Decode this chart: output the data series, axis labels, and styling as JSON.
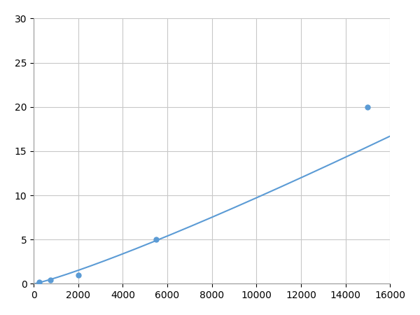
{
  "x": [
    250,
    750,
    2000,
    5500,
    15000
  ],
  "y": [
    0.2,
    0.4,
    1.0,
    5.0,
    20.0
  ],
  "line_color": "#5b9bd5",
  "marker_color": "#5b9bd5",
  "marker_size": 5,
  "line_width": 1.5,
  "xlim": [
    0,
    16000
  ],
  "ylim": [
    0,
    30
  ],
  "xticks": [
    0,
    2000,
    4000,
    6000,
    8000,
    10000,
    12000,
    14000,
    16000
  ],
  "yticks": [
    0,
    5,
    10,
    15,
    20,
    25,
    30
  ],
  "grid_color": "#c8c8c8",
  "background_color": "#ffffff",
  "tick_fontsize": 10,
  "figsize": [
    6.0,
    4.5
  ],
  "dpi": 100
}
